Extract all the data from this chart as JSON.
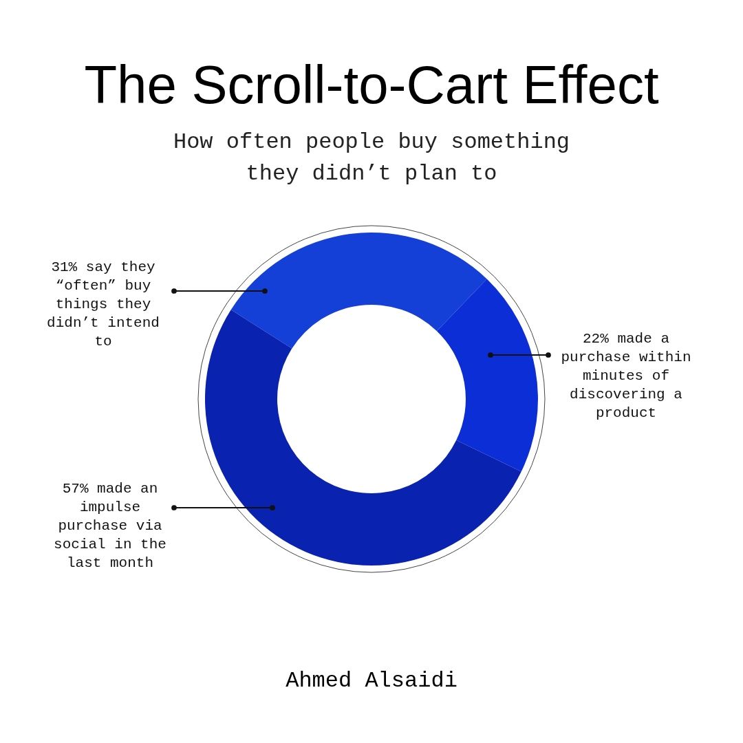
{
  "chart_data": {
    "type": "donut",
    "title": "The Scroll-to-Cart Effect",
    "subtitle": "How often people buy something they didn’t plan to",
    "categories": [
      "say they “often” buy things they didn’t intend to",
      "made a purchase within minutes of discovering a product",
      "made an impulse purchase via social in the last month"
    ],
    "values": [
      31,
      22,
      57
    ],
    "value_labels": [
      "31%",
      "22%",
      "57%"
    ],
    "colors": [
      "#1440d8",
      "#0b2ed6",
      "#0a22b0"
    ],
    "annotations": [
      "Ahmed Alsaidi"
    ]
  }
}
